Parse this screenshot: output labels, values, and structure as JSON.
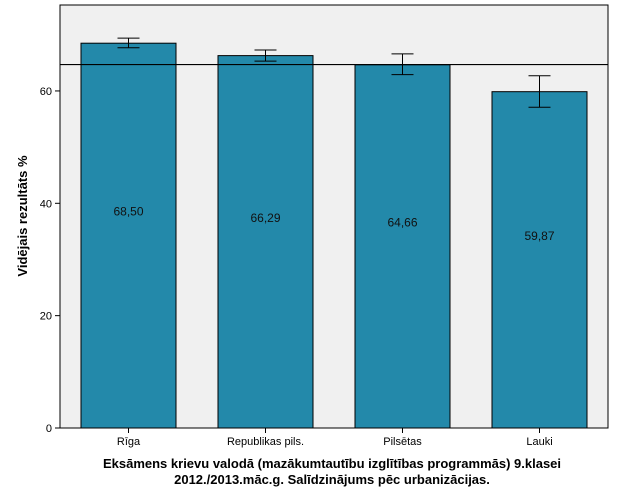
{
  "chart_data": {
    "type": "bar",
    "title_lines": [
      "Eksāmens krievu valodā (mazākumtautību izglītības programmās) 9.klasei",
      "2012./2013.māc.g. Salīdzinājums pēc urbanizācijas."
    ],
    "xlabel": "",
    "ylabel": "Vidējais rezultāts %",
    "categories": [
      "Rīga",
      "Republikas pils.",
      "Pilsētas",
      "Lauki"
    ],
    "values": [
      68.5,
      66.29,
      64.66,
      59.87
    ],
    "data_labels": [
      "68,50",
      "66,29",
      "64,66",
      "59,87"
    ],
    "error_low": [
      67.7,
      65.3,
      62.9,
      57.1
    ],
    "error_high": [
      69.4,
      67.3,
      66.6,
      62.7
    ],
    "reference_line": 64.7,
    "ylim": [
      0,
      75.3
    ],
    "yticks": [
      0,
      20,
      40,
      60
    ],
    "ytick_labels": [
      "0",
      "20",
      "40",
      "60"
    ],
    "grid": false,
    "bar_color": "#2389aa",
    "plot_background": "#f0f0f0"
  }
}
